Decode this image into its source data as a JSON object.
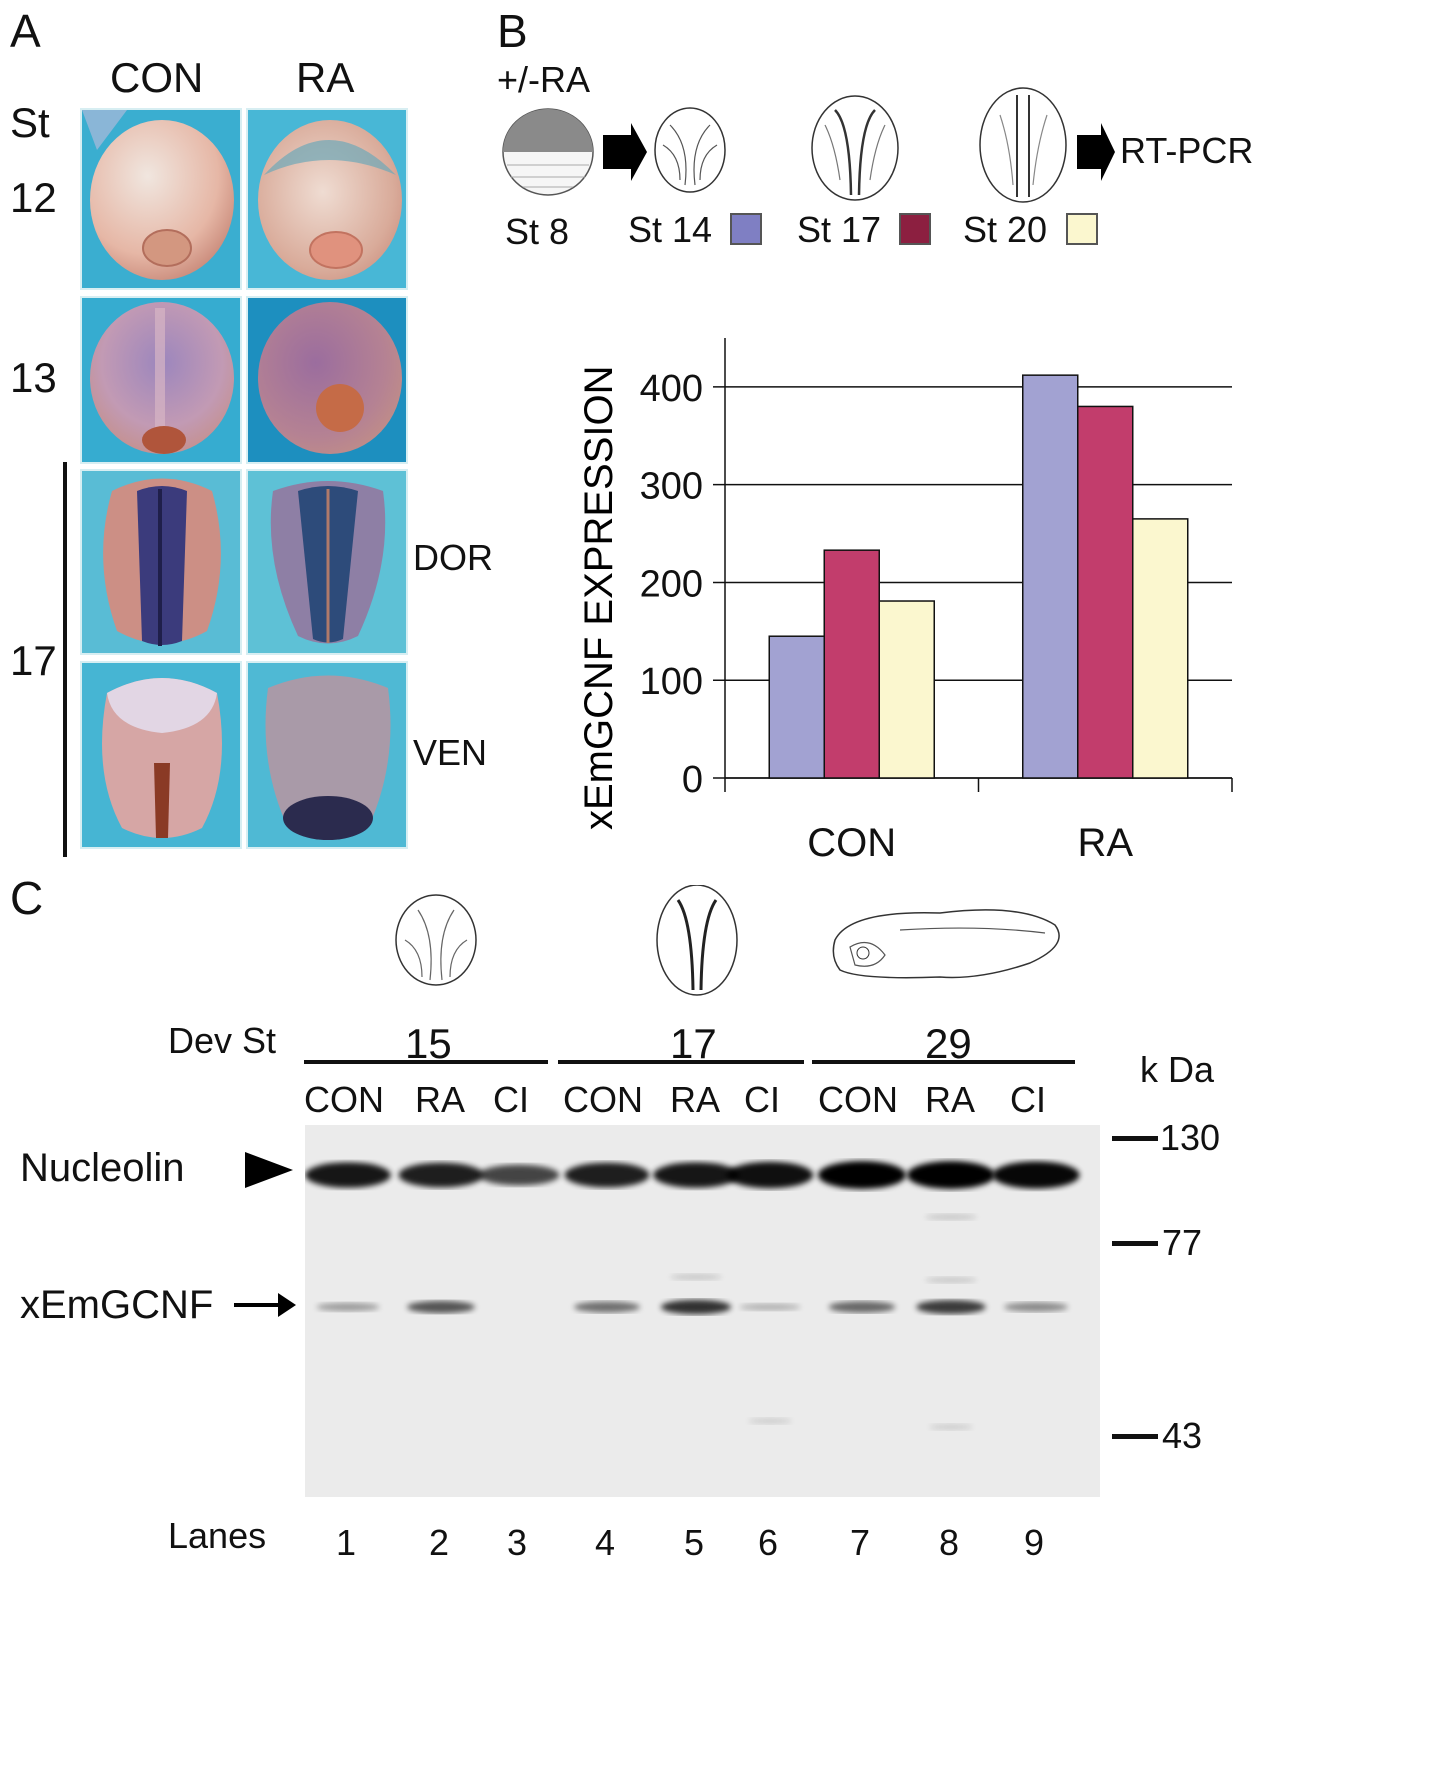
{
  "panel_a": {
    "letter": "A",
    "col_con": "CON",
    "col_ra": "RA",
    "stage_header": "St",
    "stages": [
      "12",
      "13",
      "17"
    ],
    "views": [
      "DOR",
      "VEN"
    ]
  },
  "panel_b": {
    "letter": "B",
    "treatment": "+/-RA",
    "readout": "RT-PCR",
    "stages": [
      "St 8",
      "St 14",
      "St 17",
      "St 20"
    ],
    "colors": {
      "st14": "#a2a2d2",
      "st17": "#c23d6c",
      "st20": "#fbf7cf",
      "st14_legend": "#7f7fc3",
      "st17_legend": "#8c1f40",
      "st20_legend": "#fbf7cf"
    }
  },
  "chart_data": {
    "type": "bar",
    "categories": [
      "CON",
      "RA"
    ],
    "series": [
      {
        "name": "St 14",
        "values": [
          145,
          412
        ]
      },
      {
        "name": "St 17",
        "values": [
          233,
          380
        ]
      },
      {
        "name": "St 20",
        "values": [
          181,
          265
        ]
      }
    ],
    "ylabel": "xEmGCNF EXPRESSION",
    "ylim": [
      0,
      450
    ],
    "yticks": [
      0,
      100,
      200,
      300,
      400
    ],
    "grid": true,
    "legend_position": "top"
  },
  "panel_c": {
    "letter": "C",
    "dev_label": "Dev St",
    "groups": [
      "15",
      "17",
      "29"
    ],
    "lane_conditions": [
      "CON",
      "RA",
      "CI",
      "CON",
      "RA",
      "CI",
      "CON",
      "RA",
      "CI"
    ],
    "kda_label": "k Da",
    "markers": [
      "130",
      "77",
      "43"
    ],
    "nucleolin_label": "Nucleolin",
    "target_label": "xEmGCNF",
    "lanes_label": "Lanes",
    "lane_numbers": [
      "1",
      "2",
      "3",
      "4",
      "5",
      "6",
      "7",
      "8",
      "9"
    ],
    "band_intensity_nucleolin": [
      0.85,
      0.8,
      0.55,
      0.8,
      0.85,
      0.9,
      1.0,
      1.0,
      0.95
    ],
    "band_intensity_target": [
      0.25,
      0.65,
      0.0,
      0.5,
      0.85,
      0.12,
      0.55,
      0.8,
      0.35
    ]
  }
}
